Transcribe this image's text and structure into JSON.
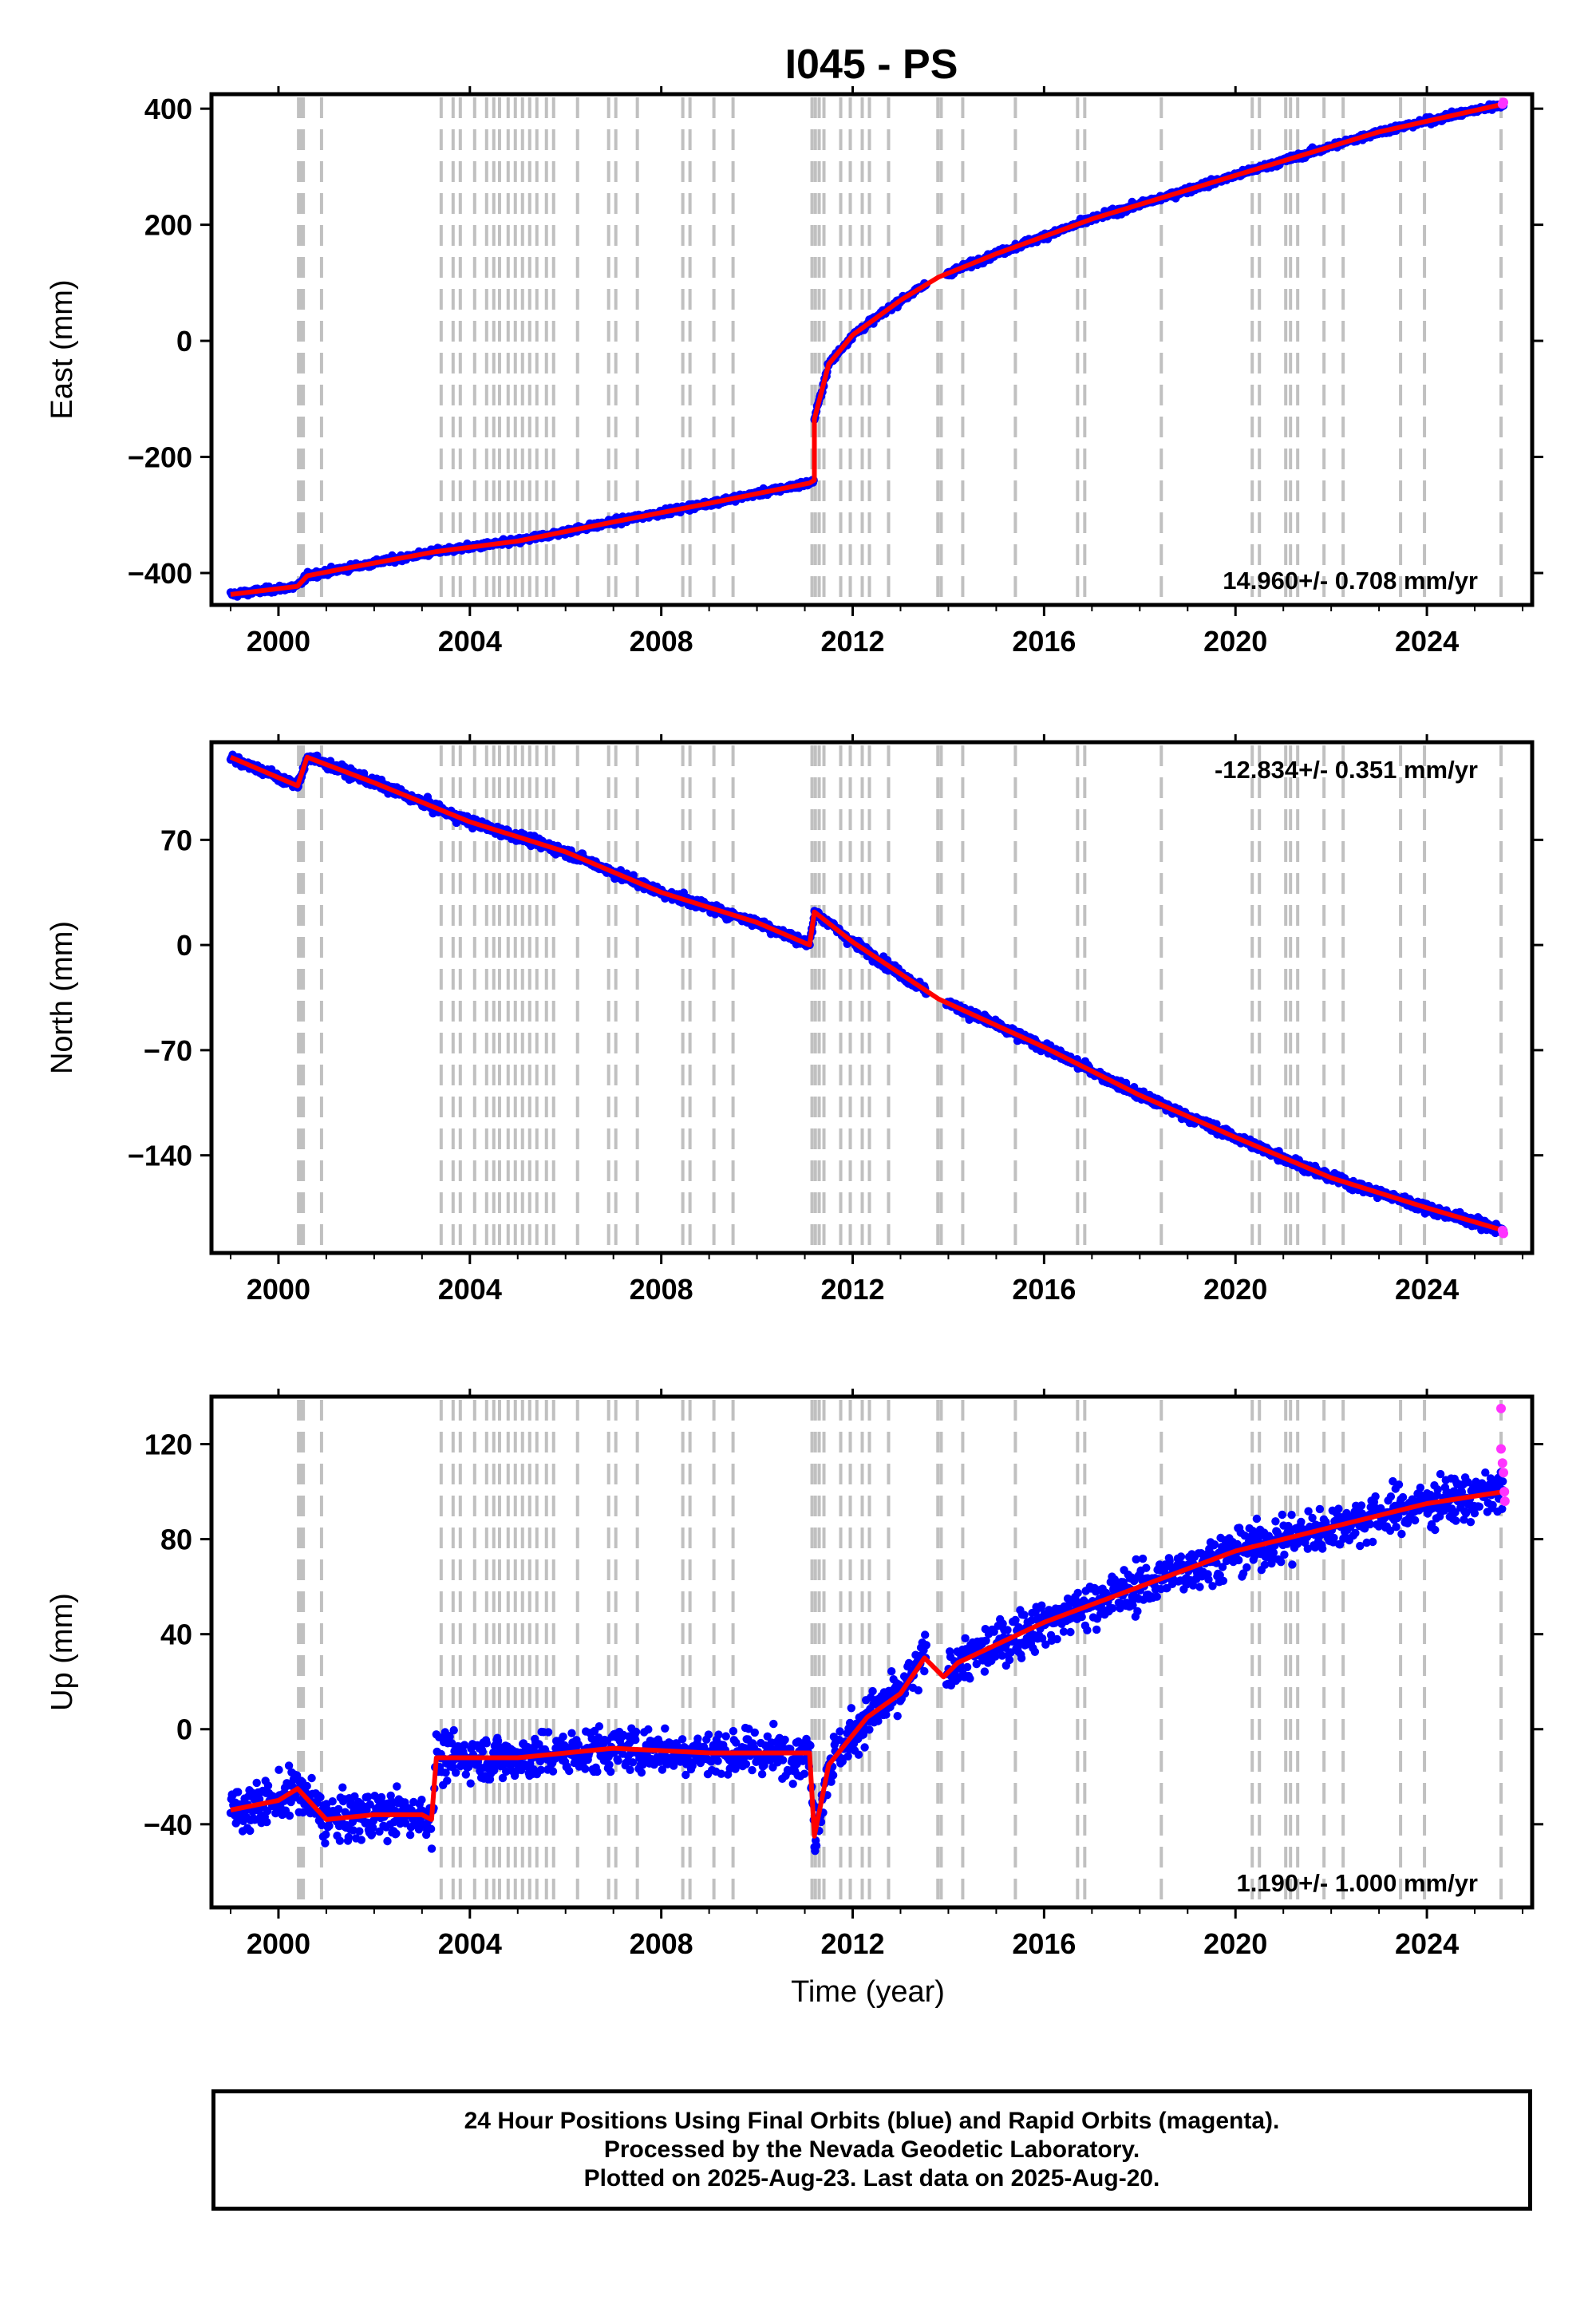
{
  "chart_data": [
    {
      "type": "scatter",
      "title": "I045 - PS",
      "ylabel": "East (mm)",
      "xlabel": "",
      "x_ticks": [
        2000,
        2004,
        2008,
        2012,
        2016,
        2020,
        2024
      ],
      "y_ticks": [
        -400,
        -200,
        0,
        200,
        400
      ],
      "xlim": [
        1998.6,
        2026.2
      ],
      "ylim": [
        -455,
        425
      ],
      "rate_label": "14.960+/- 0.708 mm/yr",
      "rate_position": "bottom-right",
      "model": [
        [
          1999.0,
          -437
        ],
        [
          2000.4,
          -423
        ],
        [
          2000.6,
          -405
        ],
        [
          2001.2,
          -395
        ],
        [
          2003.3,
          -363
        ],
        [
          2005.0,
          -345
        ],
        [
          2007.0,
          -312
        ],
        [
          2009.0,
          -280
        ],
        [
          2011.1,
          -245
        ],
        [
          2011.2,
          -240
        ],
        [
          2011.2,
          -135
        ],
        [
          2011.5,
          -40
        ],
        [
          2012.0,
          10
        ],
        [
          2013.0,
          70
        ],
        [
          2013.8,
          110
        ],
        [
          2015.0,
          150
        ],
        [
          2017.0,
          210
        ],
        [
          2019.0,
          260
        ],
        [
          2021.0,
          310
        ],
        [
          2023.0,
          360
        ],
        [
          2025.6,
          408
        ]
      ],
      "noise_mm": 5
    },
    {
      "type": "scatter",
      "title": "",
      "ylabel": "North (mm)",
      "xlabel": "",
      "x_ticks": [
        2000,
        2004,
        2008,
        2012,
        2016,
        2020,
        2024
      ],
      "y_ticks": [
        -140,
        -70,
        0,
        70
      ],
      "xlim": [
        1998.6,
        2026.2
      ],
      "ylim": [
        -205,
        135
      ],
      "rate_label": "-12.834+/- 0.351 mm/yr",
      "rate_position": "top-right",
      "model": [
        [
          1999.0,
          125
        ],
        [
          2000.4,
          106
        ],
        [
          2000.6,
          125
        ],
        [
          2002.0,
          108
        ],
        [
          2004.0,
          82
        ],
        [
          2006.0,
          62
        ],
        [
          2008.0,
          35
        ],
        [
          2010.0,
          15
        ],
        [
          2011.1,
          0
        ],
        [
          2011.2,
          22
        ],
        [
          2012.0,
          2
        ],
        [
          2013.8,
          -36
        ],
        [
          2016.0,
          -68
        ],
        [
          2018.0,
          -100
        ],
        [
          2020.0,
          -128
        ],
        [
          2022.0,
          -155
        ],
        [
          2024.0,
          -175
        ],
        [
          2025.6,
          -190
        ]
      ],
      "noise_mm": 3
    },
    {
      "type": "scatter",
      "title": "",
      "ylabel": "Up (mm)",
      "xlabel": "Time (year)",
      "x_ticks": [
        2000,
        2004,
        2008,
        2012,
        2016,
        2020,
        2024
      ],
      "x_tick_labels": [
        "2000",
        "2004",
        "2008",
        "2012",
        "2016",
        "2020",
        "2024"
      ],
      "y_ticks": [
        -40,
        0,
        40,
        80,
        120
      ],
      "xlim": [
        1998.6,
        2026.2
      ],
      "ylim": [
        -75,
        140
      ],
      "rate_label": "1.190+/- 1.000 mm/yr",
      "rate_position": "bottom-right",
      "model": [
        [
          1999.0,
          -34
        ],
        [
          2000.0,
          -30
        ],
        [
          2000.4,
          -25
        ],
        [
          2001.0,
          -38
        ],
        [
          2002.0,
          -36
        ],
        [
          2003.0,
          -36
        ],
        [
          2003.2,
          -38
        ],
        [
          2003.3,
          -12
        ],
        [
          2005.0,
          -12
        ],
        [
          2007.0,
          -8
        ],
        [
          2009.0,
          -10
        ],
        [
          2011.1,
          -10
        ],
        [
          2011.2,
          -45
        ],
        [
          2011.5,
          -15
        ],
        [
          2012.3,
          5
        ],
        [
          2013.0,
          15
        ],
        [
          2013.5,
          30
        ],
        [
          2013.9,
          22
        ],
        [
          2014.2,
          28
        ],
        [
          2016.0,
          45
        ],
        [
          2018.0,
          60
        ],
        [
          2020.0,
          75
        ],
        [
          2022.0,
          85
        ],
        [
          2024.0,
          95
        ],
        [
          2025.6,
          100
        ]
      ],
      "noise_mm": 9,
      "rapid_points": [
        [
          2025.55,
          135
        ],
        [
          2025.55,
          118
        ],
        [
          2025.58,
          112
        ],
        [
          2025.6,
          108
        ],
        [
          2025.62,
          100
        ],
        [
          2025.63,
          96
        ]
      ]
    }
  ],
  "antenna_changes": [
    2000.42,
    2000.46,
    2000.52,
    2000.9,
    2003.4,
    2003.65,
    2003.8,
    2004.1,
    2004.35,
    2004.5,
    2004.62,
    2004.8,
    2004.95,
    2005.1,
    2005.25,
    2005.4,
    2005.6,
    2005.75,
    2006.25,
    2006.9,
    2007.05,
    2007.5,
    2008.45,
    2008.6,
    2009.1,
    2009.5,
    2011.15,
    2011.22,
    2011.3,
    2011.4,
    2011.75,
    2011.95,
    2012.2,
    2012.35,
    2012.75,
    2013.78,
    2013.85,
    2014.3,
    2015.4,
    2016.7,
    2016.85,
    2018.45,
    2020.35,
    2020.5,
    2021.05,
    2021.15,
    2021.3,
    2021.85,
    2022.25,
    2023.45,
    2023.95,
    2025.55
  ],
  "colors": {
    "final_orbits": "#0000ff",
    "rapid_orbits": "#ff33ff",
    "model": "#ff0000",
    "event_lines": "#c0c0c0"
  },
  "caption": {
    "line1": "24 Hour Positions Using Final Orbits (blue) and Rapid Orbits (magenta).",
    "line2": "Processed by the Nevada Geodetic Laboratory.",
    "line3": "Plotted on 2025-Aug-23. Last data on 2025-Aug-20."
  }
}
